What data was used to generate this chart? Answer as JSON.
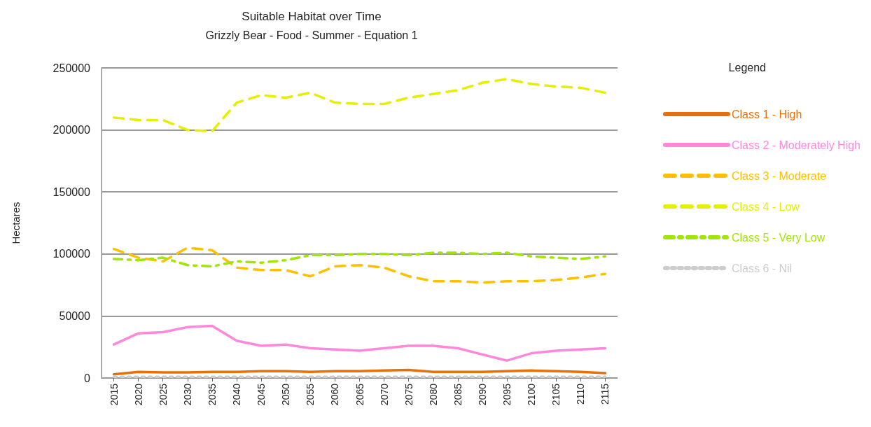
{
  "chart_data": {
    "type": "line",
    "title": "Suitable Habitat over Time",
    "subtitle": "Grizzly Bear - Food - Summer - Equation 1",
    "ylabel": "Hectares",
    "legend_title": "Legend",
    "categories": [
      "2015",
      "2020",
      "2025",
      "2030",
      "2035",
      "2040",
      "2045",
      "2050",
      "2055",
      "2060",
      "2065",
      "2070",
      "2075",
      "2080",
      "2085",
      "2090",
      "2095",
      "2100",
      "2105",
      "2110",
      "2115"
    ],
    "series": [
      {
        "name": "Class 1 - High",
        "color": "#e8700a",
        "line_style": "solid",
        "values": [
          3000,
          5000,
          4500,
          4500,
          5000,
          5000,
          5500,
          5500,
          5000,
          5500,
          5500,
          6000,
          6500,
          5000,
          5000,
          5000,
          5500,
          6000,
          5500,
          5000,
          4000
        ]
      },
      {
        "name": "Class 2 - Moderately High",
        "color": "#ff88dd",
        "line_style": "solid",
        "values": [
          27000,
          36000,
          37000,
          41000,
          42000,
          30000,
          26000,
          27000,
          24000,
          23000,
          22000,
          24000,
          26000,
          26000,
          24000,
          19000,
          14000,
          20000,
          22000,
          23000,
          24000
        ]
      },
      {
        "name": "Class 3 - Moderate",
        "color": "#ffc000",
        "line_style": "dashed",
        "values": [
          104000,
          97000,
          94000,
          105000,
          103000,
          89000,
          87000,
          87000,
          82000,
          90000,
          91000,
          89000,
          82000,
          78000,
          78000,
          77000,
          78000,
          78000,
          79000,
          81000,
          84000
        ]
      },
      {
        "name": "Class 4 - Low",
        "color": "#e5f000",
        "line_style": "dashed",
        "values": [
          210000,
          208000,
          208000,
          200000,
          199000,
          222000,
          228000,
          226000,
          230000,
          222000,
          221000,
          221000,
          226000,
          229000,
          232000,
          238000,
          241000,
          237000,
          235000,
          234000,
          230000
        ]
      },
      {
        "name": "Class 5 - Very Low",
        "color": "#a0e600",
        "line_style": "dashdot",
        "values": [
          96000,
          95000,
          97000,
          91000,
          90000,
          94000,
          93000,
          95000,
          99000,
          99000,
          100000,
          100000,
          99000,
          101000,
          101000,
          100000,
          101000,
          98000,
          97000,
          96000,
          98000
        ]
      },
      {
        "name": "Class 6 - Nil",
        "color": "#cccccc",
        "line_style": "dotted",
        "values": [
          1000,
          1000,
          1000,
          1000,
          1000,
          1000,
          1000,
          1000,
          1000,
          1000,
          1000,
          1000,
          1000,
          1000,
          1000,
          1000,
          1000,
          1000,
          1000,
          1000,
          1000
        ]
      }
    ],
    "ylim": [
      0,
      250000
    ],
    "yticks": [
      0,
      50000,
      100000,
      150000,
      200000,
      250000
    ],
    "grid": "y",
    "legend": "right",
    "marker": "none"
  }
}
